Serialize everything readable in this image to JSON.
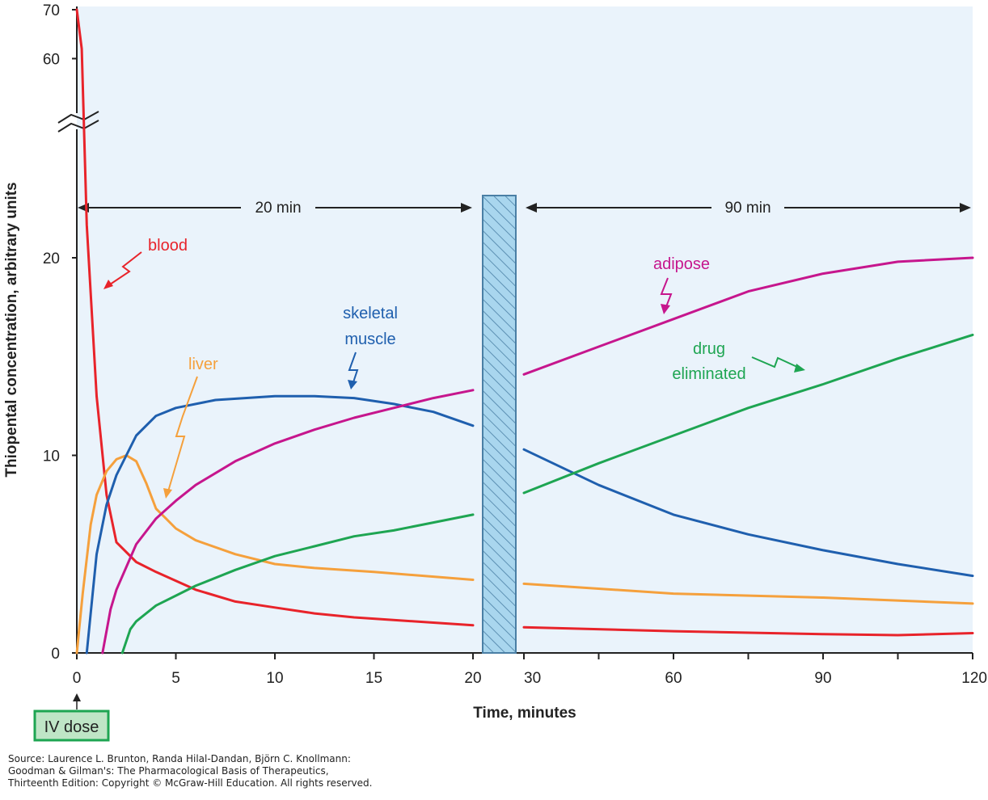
{
  "chart_data": {
    "type": "line",
    "ylabel": "Thiopental concentration, arbitrary units",
    "xlabel": "Time, minutes",
    "y_ticks": [
      "0",
      "10",
      "20",
      "60",
      "70"
    ],
    "x_ticks_left": [
      "0",
      "5",
      "10",
      "15",
      "20"
    ],
    "x_ticks_right": [
      "30",
      "60",
      "90",
      "120"
    ],
    "y_axis_break": "between 20 and 60",
    "x_axis_break": "between 20 and 30",
    "x_scale_left": "0–20 min",
    "x_scale_right": "30–120 min",
    "spans": [
      {
        "label": "20 min",
        "from": 0,
        "to": 20
      },
      {
        "label": "90 min",
        "from": 30,
        "to": 120
      }
    ],
    "series": [
      {
        "name": "blood",
        "color": "#e8232a",
        "points": [
          [
            0,
            70
          ],
          [
            0.25,
            62
          ],
          [
            0.5,
            26
          ],
          [
            1,
            13
          ],
          [
            1.5,
            8
          ],
          [
            2,
            5.6
          ],
          [
            3,
            4.6
          ],
          [
            4,
            4.1
          ],
          [
            6,
            3.2
          ],
          [
            8,
            2.6
          ],
          [
            10,
            2.3
          ],
          [
            12,
            2.0
          ],
          [
            14,
            1.8
          ],
          [
            17,
            1.6
          ],
          [
            20,
            1.4
          ],
          [
            30,
            1.3
          ],
          [
            60,
            1.1
          ],
          [
            90,
            0.95
          ],
          [
            105,
            0.9
          ],
          [
            120,
            1.0
          ]
        ]
      },
      {
        "name": "liver",
        "color": "#f5a03c",
        "points": [
          [
            0,
            0
          ],
          [
            0.3,
            3
          ],
          [
            0.7,
            6.5
          ],
          [
            1,
            8
          ],
          [
            1.5,
            9.2
          ],
          [
            2,
            9.8
          ],
          [
            2.5,
            10
          ],
          [
            3,
            9.7
          ],
          [
            3.5,
            8.6
          ],
          [
            4,
            7.3
          ],
          [
            4.5,
            6.8
          ],
          [
            5,
            6.3
          ],
          [
            6,
            5.7
          ],
          [
            8,
            5.0
          ],
          [
            10,
            4.5
          ],
          [
            12,
            4.3
          ],
          [
            15,
            4.1
          ],
          [
            20,
            3.7
          ],
          [
            30,
            3.5
          ],
          [
            60,
            3.0
          ],
          [
            90,
            2.8
          ],
          [
            120,
            2.5
          ]
        ]
      },
      {
        "name": "skeletal muscle",
        "color": "#1f5fae",
        "points": [
          [
            0.5,
            0
          ],
          [
            0.8,
            3
          ],
          [
            1,
            5
          ],
          [
            1.5,
            7.5
          ],
          [
            2,
            9
          ],
          [
            3,
            11
          ],
          [
            4,
            12
          ],
          [
            5,
            12.4
          ],
          [
            7,
            12.8
          ],
          [
            10,
            13.0
          ],
          [
            12,
            13.0
          ],
          [
            14,
            12.9
          ],
          [
            16,
            12.6
          ],
          [
            18,
            12.2
          ],
          [
            20,
            11.5
          ],
          [
            30,
            10.3
          ],
          [
            45,
            8.5
          ],
          [
            60,
            7
          ],
          [
            75,
            6
          ],
          [
            90,
            5.2
          ],
          [
            105,
            4.5
          ],
          [
            120,
            3.9
          ]
        ]
      },
      {
        "name": "adipose",
        "color": "#c6168d",
        "points": [
          [
            1.3,
            0
          ],
          [
            1.7,
            2.2
          ],
          [
            2,
            3.2
          ],
          [
            3,
            5.5
          ],
          [
            4,
            6.8
          ],
          [
            5,
            7.7
          ],
          [
            6,
            8.5
          ],
          [
            8,
            9.7
          ],
          [
            10,
            10.6
          ],
          [
            12,
            11.3
          ],
          [
            14,
            11.9
          ],
          [
            16,
            12.4
          ],
          [
            18,
            12.9
          ],
          [
            20,
            13.3
          ],
          [
            30,
            14.1
          ],
          [
            45,
            15.5
          ],
          [
            60,
            16.9
          ],
          [
            75,
            18.3
          ],
          [
            90,
            19.2
          ],
          [
            105,
            19.8
          ],
          [
            120,
            20.0
          ]
        ]
      },
      {
        "name": "drug eliminated",
        "color": "#1ea552",
        "points": [
          [
            2.3,
            0
          ],
          [
            2.7,
            1.2
          ],
          [
            3,
            1.6
          ],
          [
            4,
            2.4
          ],
          [
            5,
            2.9
          ],
          [
            6,
            3.4
          ],
          [
            8,
            4.2
          ],
          [
            10,
            4.9
          ],
          [
            12,
            5.4
          ],
          [
            14,
            5.9
          ],
          [
            16,
            6.2
          ],
          [
            18,
            6.6
          ],
          [
            20,
            7.0
          ],
          [
            30,
            8.1
          ],
          [
            45,
            9.6
          ],
          [
            60,
            11.0
          ],
          [
            75,
            12.4
          ],
          [
            90,
            13.6
          ],
          [
            105,
            14.9
          ],
          [
            120,
            16.1
          ]
        ]
      }
    ],
    "annotations": [
      "blood",
      "liver",
      "skeletal muscle",
      "adipose",
      "drug eliminated"
    ]
  },
  "labels": {
    "blood": "blood",
    "liver": "liver",
    "skeletal_1": "skeletal",
    "skeletal_2": "muscle",
    "adipose": "adipose",
    "drug_1": "drug",
    "drug_2": "eliminated",
    "iv_dose": "IV dose"
  },
  "source": [
    "Source: Laurence L. Brunton, Randa Hilal-Dandan, Björn C. Knollmann:",
    "Goodman & Gilman's: The Pharmacological Basis of Therapeutics,",
    "Thirteenth Edition: Copyright © McGraw-Hill Education. All rights reserved."
  ],
  "colors": {
    "plot_bg": "#eaf3fb",
    "break_bar": "#a9d6ee",
    "iv_box_fill": "#bfe5c6",
    "iv_box_stroke": "#1ea552"
  }
}
